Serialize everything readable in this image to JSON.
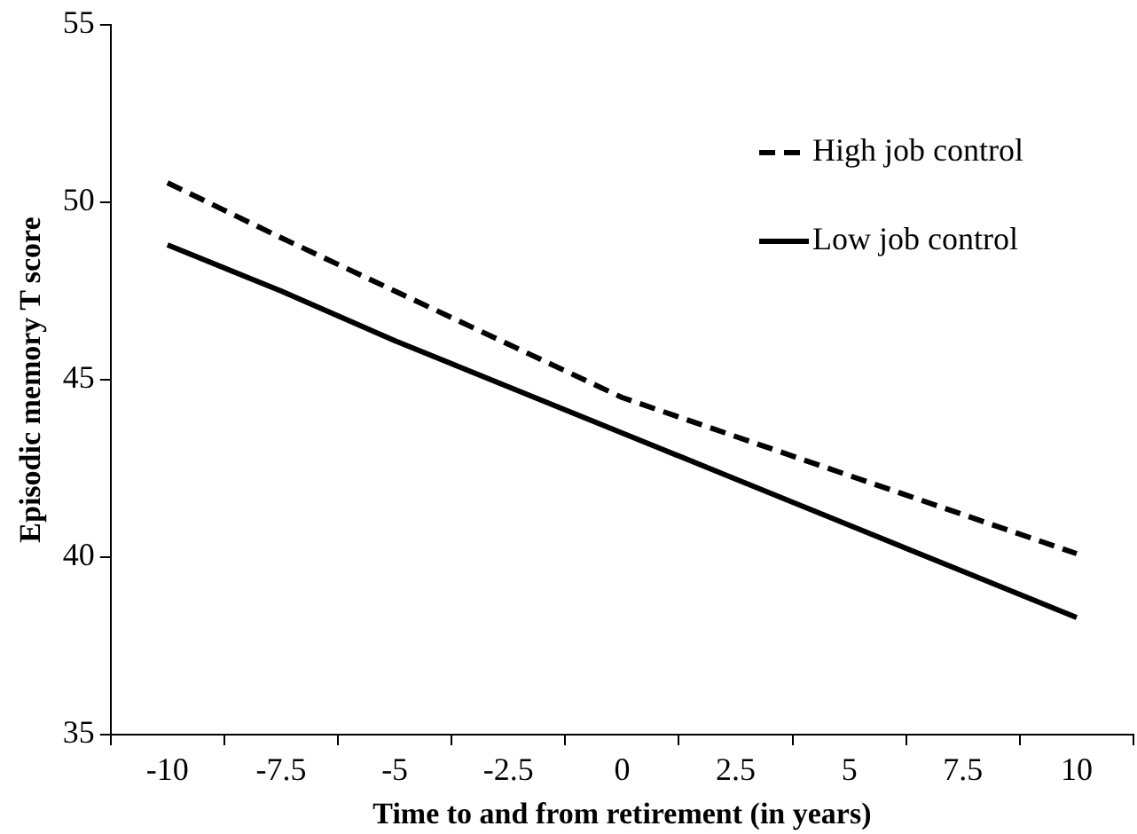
{
  "chart_data": {
    "type": "line",
    "xlabel": "Time to and from retirement (in years)",
    "ylabel": "Episodic memory T score",
    "categories": [
      "-10",
      "-7.5",
      "-5",
      "-2.5",
      "0",
      "2.5",
      "5",
      "7.5",
      "10"
    ],
    "series": [
      {
        "name": "High job control",
        "color": "#000000",
        "line_style": "dashed",
        "values": [
          50.55,
          49.0,
          47.5,
          46.0,
          44.5,
          43.4,
          42.3,
          41.2,
          40.1
        ]
      },
      {
        "name": "Low job control",
        "color": "#000000",
        "line_style": "solid",
        "values": [
          48.8,
          47.5,
          46.1,
          44.8,
          43.5,
          42.2,
          40.9,
          39.6,
          38.3
        ]
      }
    ],
    "ylim": [
      35,
      55
    ],
    "yticks": [
      35,
      40,
      45,
      50,
      55
    ],
    "grid": false,
    "legend": "top right",
    "marker": "none"
  }
}
